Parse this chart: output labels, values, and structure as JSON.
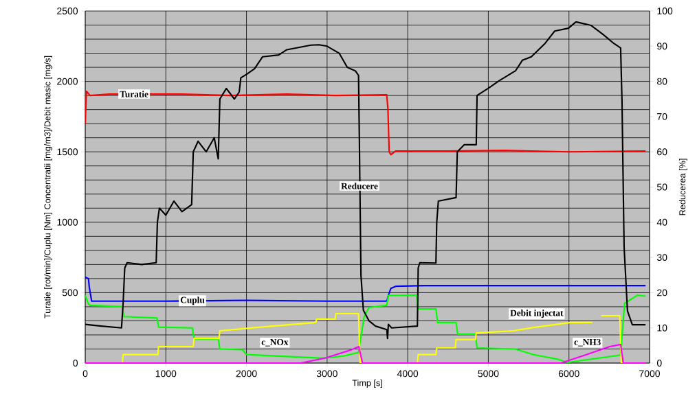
{
  "chart_data": {
    "type": "line",
    "xlabel": "Timp [s]",
    "ylabel": "Turatie [rot/min]/Cuplu [Nm] Concentratii [mg/m3]/Debit masic [mg/s]",
    "y2label": "Reducerea [%]",
    "xlim": [
      0,
      7000
    ],
    "xticks": [
      0,
      1000,
      2000,
      3000,
      4000,
      5000,
      6000,
      7000
    ],
    "ylim": [
      0,
      2500
    ],
    "yticks": [
      0,
      500,
      1000,
      1500,
      2000,
      2500
    ],
    "y2lim": [
      0,
      100
    ],
    "y2ticks": [
      0,
      10,
      20,
      30,
      40,
      50,
      60,
      70,
      80,
      90,
      100
    ],
    "grid": true,
    "series": [
      {
        "name": "Turatie",
        "color": "#ff0000",
        "x": [
          0,
          15,
          60,
          300,
          1200,
          1800,
          2500,
          3100,
          3740,
          3755,
          3770,
          3790,
          3850,
          4500,
          5200,
          6000,
          6950
        ],
        "values": [
          1700,
          1930,
          1900,
          1910,
          1910,
          1900,
          1910,
          1900,
          1905,
          1800,
          1500,
          1480,
          1505,
          1505,
          1510,
          1500,
          1505
        ]
      },
      {
        "name": "Cuplu",
        "color": "#0000ff",
        "x": [
          0,
          40,
          50,
          80,
          1000,
          2000,
          3000,
          3740,
          3760,
          3790,
          3850,
          4200,
          5500,
          6950
        ],
        "values": [
          610,
          600,
          540,
          440,
          440,
          445,
          440,
          440,
          480,
          530,
          545,
          550,
          550,
          550
        ]
      },
      {
        "name": "c_NOx",
        "color": "#00ff00",
        "x": [
          0,
          40,
          60,
          460,
          480,
          890,
          910,
          1330,
          1350,
          1650,
          1670,
          1950,
          2000,
          2950,
          3200,
          3390,
          3460,
          3520,
          3740,
          3760,
          4110,
          4130,
          4350,
          4370,
          4600,
          4620,
          4840,
          4860,
          5330,
          5560,
          5840,
          5990,
          6640,
          6690,
          6850,
          6950
        ],
        "values": [
          480,
          420,
          410,
          400,
          330,
          320,
          255,
          250,
          170,
          170,
          100,
          95,
          60,
          35,
          50,
          75,
          330,
          395,
          410,
          480,
          482,
          385,
          385,
          288,
          288,
          205,
          205,
          107,
          100,
          60,
          30,
          5,
          57,
          424,
          482,
          475
        ]
      },
      {
        "name": "Reducere",
        "color": "#000000",
        "axis": "y2",
        "x": [
          0,
          200,
          450,
          470,
          490,
          520,
          700,
          880,
          895,
          920,
          1000,
          1100,
          1200,
          1320,
          1340,
          1400,
          1500,
          1600,
          1650,
          1670,
          1750,
          1850,
          1910,
          1930,
          2000,
          2100,
          2200,
          2400,
          2500,
          2800,
          2900,
          3000,
          3150,
          3250,
          3350,
          3390,
          3400,
          3420,
          3450,
          3520,
          3600,
          3740,
          3750,
          3760,
          3800,
          4120,
          4130,
          4150,
          4350,
          4360,
          4380,
          4600,
          4615,
          4700,
          4850,
          4860,
          4996,
          5141,
          5337,
          5422,
          5533,
          5704,
          5823,
          5993,
          6087,
          6275,
          6420,
          6556,
          6641,
          6658,
          6684,
          6726,
          6786,
          6950
        ],
        "values": [
          11,
          10.5,
          10,
          17,
          27,
          28.5,
          28,
          28.5,
          40,
          44,
          42,
          46,
          43,
          45,
          60,
          63,
          60,
          64,
          58,
          75,
          78,
          75,
          77,
          81,
          82,
          83.6,
          87,
          87.5,
          89,
          90.3,
          90.4,
          90,
          88,
          84,
          83,
          81.7,
          64,
          25,
          15,
          12,
          10.5,
          9.5,
          7,
          11,
          10,
          10.5,
          27,
          28.5,
          28.4,
          40,
          46,
          47,
          60,
          62,
          62,
          76,
          78,
          80.3,
          83,
          86,
          87,
          90.8,
          94.3,
          95.1,
          96.9,
          95.9,
          93.4,
          90.8,
          89.5,
          74.5,
          33,
          14.8,
          10.9,
          10.9
        ]
      },
      {
        "name": "Debit injectat",
        "color": "#ffff00",
        "x": [
          0,
          460,
          470,
          900,
          910,
          1340,
          1350,
          1660,
          1670,
          2120,
          2860,
          2870,
          3100,
          3110,
          3390,
          3410,
          4120,
          4130,
          4350,
          4360,
          4590,
          4600,
          4840,
          4850,
          5310,
          5560,
          6020,
          6290,
          6340,
          6400,
          6630,
          6650,
          6950
        ],
        "values": [
          0,
          0,
          60,
          60,
          117,
          117,
          175,
          175,
          229,
          253,
          288,
          312,
          312,
          351,
          351,
          0,
          0,
          60,
          60,
          107,
          107,
          166,
          166,
          214,
          229,
          253,
          288,
          288,
          null,
          336,
          336,
          0,
          0
        ]
      },
      {
        "name": "c_NH3",
        "color": "#ff00ff",
        "x": [
          0,
          2670,
          2975,
          3290,
          3393,
          3440,
          5900,
          6215,
          6505,
          6641,
          6675,
          6950
        ],
        "values": [
          0,
          0,
          35,
          92,
          117,
          0,
          0,
          60,
          117,
          132,
          0,
          0
        ]
      }
    ]
  }
}
